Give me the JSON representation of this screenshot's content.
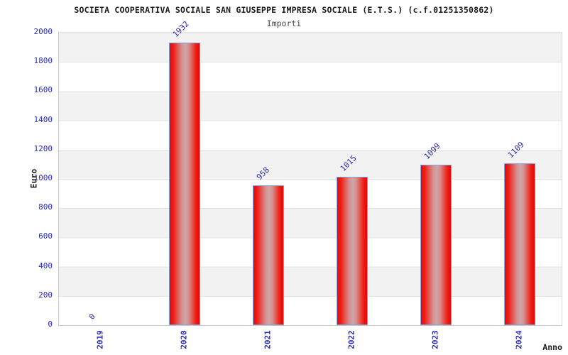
{
  "header": {
    "title": "SOCIETA COOPERATIVA SOCIALE SAN GIUSEPPE IMPRESA SOCIALE (E.T.S.) (c.f.01251350862)",
    "subtitle": "Importi"
  },
  "chart_data": {
    "type": "bar",
    "title": "SOCIETA COOPERATIVA SOCIALE SAN GIUSEPPE IMPRESA SOCIALE (E.T.S.) (c.f.01251350862)",
    "subtitle": "Importi",
    "categories": [
      "2019",
      "2020",
      "2021",
      "2022",
      "2023",
      "2024"
    ],
    "values": [
      0,
      1932,
      958,
      1015,
      1099,
      1109
    ],
    "xlabel": "Anno",
    "ylabel": "Euro",
    "ylim": [
      0,
      2000
    ],
    "ytick_step": 200,
    "grid": "horizontal-bands",
    "legend": "none",
    "colors": {
      "bar_fill": "#ed1c1c",
      "bar_highlight": "#cda7a7",
      "bar_border": "#7fa6e4",
      "value_label": "#2b2ba6",
      "tick_label": "#2929cc",
      "band_gray": "#f2f2f2",
      "title_text": "#1c1c1c",
      "subtitle_text": "#434343"
    }
  }
}
